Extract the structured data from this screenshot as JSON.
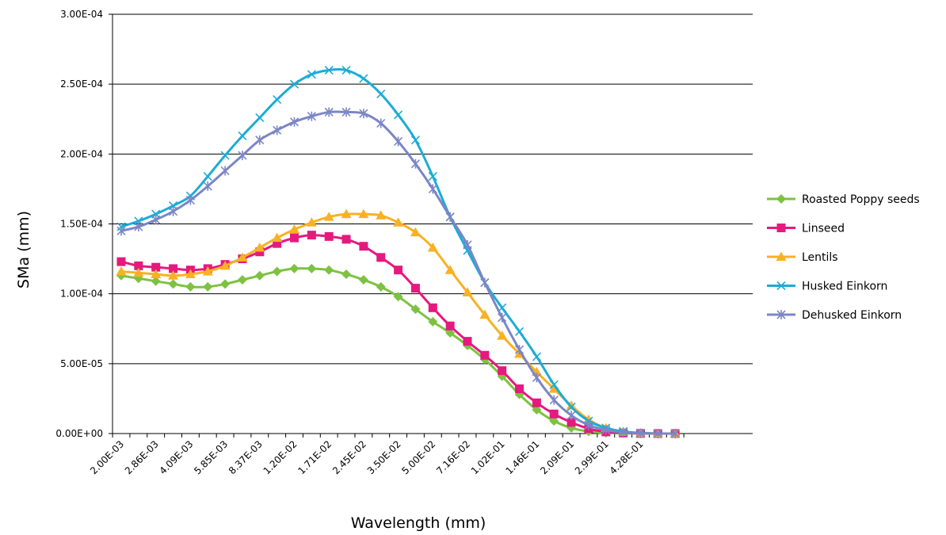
{
  "chart_data": {
    "type": "line",
    "xlabel": "Wavelength (mm)",
    "ylabel": "SMa (mm)",
    "ylim": [
      0,
      0.0003
    ],
    "yticks": [
      "0.00E+00",
      "5.00E-05",
      "1.00E-04",
      "1.50E-04",
      "2.00E-04",
      "2.50E-04",
      "3.00E-04"
    ],
    "grid": "horizontal",
    "legend_position": "right",
    "x_tick_labels": [
      "2.00E-03",
      "2.86E-03",
      "4.09E-03",
      "5.85E-03",
      "8.37E-03",
      "1.20E-02",
      "1.71E-02",
      "2.45E-02",
      "3.50E-02",
      "5.00E-02",
      "7.16E-02",
      "1.02E-01",
      "1.46E-01",
      "2.09E-01",
      "2.99E-01",
      "4.28E-01"
    ],
    "x": [
      0.002,
      0.00239,
      0.00286,
      0.00342,
      0.00409,
      0.00489,
      0.00585,
      0.007,
      0.00837,
      0.01001,
      0.012,
      0.01433,
      0.0171,
      0.02048,
      0.0245,
      0.02929,
      0.035,
      0.04185,
      0.05,
      0.0598,
      0.0716,
      0.0856,
      0.102,
      0.122,
      0.146,
      0.175,
      0.209,
      0.25,
      0.299,
      0.358,
      0.428,
      0.512,
      0.613
    ],
    "series": [
      {
        "name": "Roasted Poppy seeds",
        "color": "#7DC242",
        "marker": "diamond",
        "values": [
          0.000113,
          0.000111,
          0.000109,
          0.000107,
          0.000105,
          0.000105,
          0.000107,
          0.00011,
          0.000113,
          0.000116,
          0.000118,
          0.000118,
          0.000117,
          0.000114,
          0.00011,
          0.000105,
          9.8e-05,
          8.9e-05,
          8e-05,
          7.2e-05,
          6.3e-05,
          5.3e-05,
          4.1e-05,
          2.8e-05,
          1.7e-05,
          9e-06,
          4e-06,
          1.5e-06,
          5e-07,
          2e-07,
          1e-07,
          0,
          0
        ]
      },
      {
        "name": "Linseed",
        "color": "#E6197E",
        "marker": "square",
        "values": [
          0.000123,
          0.00012,
          0.000119,
          0.000118,
          0.000117,
          0.000118,
          0.000121,
          0.000125,
          0.00013,
          0.000136,
          0.00014,
          0.000142,
          0.000141,
          0.000139,
          0.000134,
          0.000126,
          0.000117,
          0.000104,
          9e-05,
          7.7e-05,
          6.6e-05,
          5.6e-05,
          4.5e-05,
          3.2e-05,
          2.2e-05,
          1.4e-05,
          8e-06,
          3.5e-06,
          1.2e-06,
          4e-07,
          1e-07,
          0,
          0
        ]
      },
      {
        "name": "Lentils",
        "color": "#F9B122",
        "marker": "triangle",
        "values": [
          0.000116,
          0.000115,
          0.000114,
          0.000113,
          0.000114,
          0.000116,
          0.00012,
          0.000126,
          0.000133,
          0.00014,
          0.000146,
          0.000151,
          0.000155,
          0.000157,
          0.000157,
          0.000156,
          0.000151,
          0.000144,
          0.000133,
          0.000117,
          0.000101,
          8.5e-05,
          7e-05,
          5.7e-05,
          4.4e-05,
          3.2e-05,
          2e-05,
          1e-05,
          4e-06,
          1.2e-06,
          3e-07,
          0,
          0
        ]
      },
      {
        "name": "Husked Einkorn",
        "color": "#1BACD6",
        "marker": "x",
        "values": [
          0.000148,
          0.000152,
          0.000157,
          0.000163,
          0.00017,
          0.000184,
          0.000199,
          0.000213,
          0.000226,
          0.000239,
          0.00025,
          0.000257,
          0.00026,
          0.00026,
          0.000254,
          0.000243,
          0.000228,
          0.00021,
          0.000184,
          0.000155,
          0.000131,
          0.000108,
          9e-05,
          7.3e-05,
          5.5e-05,
          3.5e-05,
          1.9e-05,
          9e-06,
          4e-06,
          1.5e-06,
          4e-07,
          0,
          0
        ]
      },
      {
        "name": "Dehusked Einkorn",
        "color": "#7B86C6",
        "marker": "star",
        "values": [
          0.000145,
          0.000148,
          0.000153,
          0.000159,
          0.000167,
          0.000177,
          0.000188,
          0.000199,
          0.00021,
          0.000217,
          0.000223,
          0.000227,
          0.00023,
          0.00023,
          0.000229,
          0.000222,
          0.000209,
          0.000193,
          0.000175,
          0.000155,
          0.000135,
          0.000108,
          8.3e-05,
          6e-05,
          4e-05,
          2.4e-05,
          1.3e-05,
          6e-06,
          2.5e-06,
          8e-07,
          2e-07,
          0,
          0
        ]
      }
    ]
  }
}
